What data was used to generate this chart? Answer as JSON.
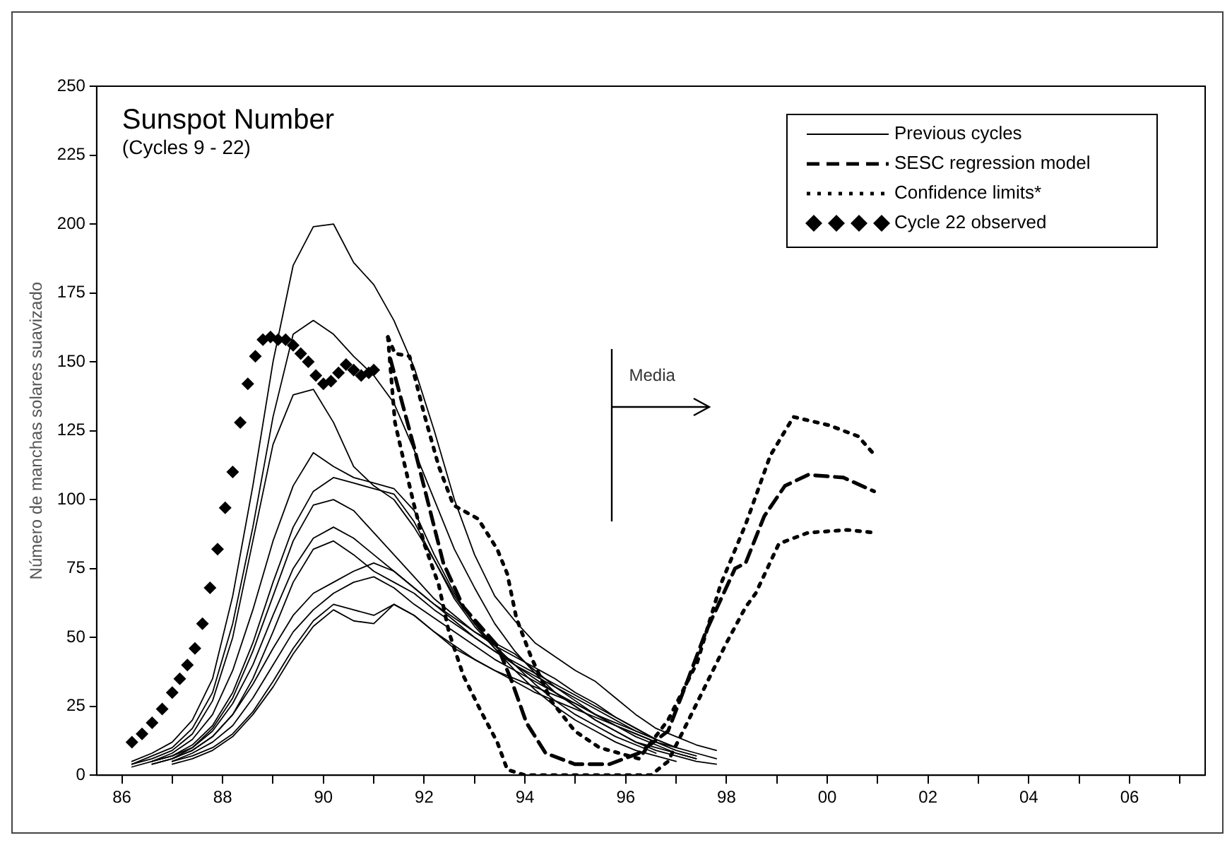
{
  "chart_data": {
    "type": "line",
    "title": "Sunspot Number",
    "subtitle": "(Cycles 9 - 22)",
    "ylabel": "Número de manchas solares suavizado",
    "x": [
      1986.2,
      1986.6,
      1987,
      1987.4,
      1987.8,
      1988.2,
      1988.6,
      1989,
      1989.4,
      1989.8,
      1990.2,
      1990.6,
      1991,
      1991.4,
      1991.8,
      1992.2,
      1992.6,
      1993,
      1993.4,
      1993.8,
      1994.2,
      1994.6,
      1995,
      1995.4,
      1995.8,
      1996.2,
      1996.6,
      1997,
      1997.4,
      1997.8
    ],
    "xlim": [
      1985.5,
      2007.5
    ],
    "xticks": [
      {
        "value": 1986,
        "label": "86"
      },
      {
        "value": 1987,
        "label": null
      },
      {
        "value": 1988,
        "label": "88"
      },
      {
        "value": 1989,
        "label": null
      },
      {
        "value": 1990,
        "label": "90"
      },
      {
        "value": 1991,
        "label": null
      },
      {
        "value": 1992,
        "label": "92"
      },
      {
        "value": 1993,
        "label": null
      },
      {
        "value": 1994,
        "label": "94"
      },
      {
        "value": 1995,
        "label": null
      },
      {
        "value": 1996,
        "label": "96"
      },
      {
        "value": 1997,
        "label": null
      },
      {
        "value": 1998,
        "label": "98"
      },
      {
        "value": 1999,
        "label": null
      },
      {
        "value": 2000,
        "label": "00"
      },
      {
        "value": 2001,
        "label": null
      },
      {
        "value": 2002,
        "label": "02"
      },
      {
        "value": 2003,
        "label": null
      },
      {
        "value": 2004,
        "label": "04"
      },
      {
        "value": 2005,
        "label": null
      },
      {
        "value": 2006,
        "label": "06"
      },
      {
        "value": 2007,
        "label": null
      }
    ],
    "ylim": [
      0,
      250
    ],
    "yticks": [
      0,
      25,
      50,
      75,
      100,
      125,
      150,
      175,
      200,
      225,
      250
    ],
    "marker": "none",
    "legend": "top right",
    "annotations": [
      "Media"
    ],
    "series": [
      {
        "name": "Previous cycles",
        "color": "#000000",
        "line_style": "solid",
        "values": [
          5,
          8,
          12,
          20,
          35,
          65,
          105,
          150,
          185,
          199,
          200,
          186,
          178,
          165,
          148,
          125,
          100,
          80,
          65,
          56,
          48,
          43,
          38,
          34,
          28,
          22,
          17,
          14,
          11,
          9
        ]
      },
      {
        "color": "#000000",
        "line_style": "solid",
        "values": [
          4,
          7,
          10,
          17,
          30,
          55,
          90,
          130,
          160,
          165,
          160,
          152,
          145,
          135,
          118,
          100,
          82,
          68,
          55,
          45,
          37,
          30,
          25,
          20,
          16,
          12,
          10,
          8,
          6,
          null
        ]
      },
      {
        "color": "#000000",
        "line_style": "solid",
        "values": [
          4,
          6,
          9,
          15,
          27,
          50,
          85,
          120,
          138,
          140,
          128,
          112,
          105,
          100,
          90,
          78,
          65,
          55,
          46,
          38,
          31,
          25,
          20,
          16,
          12,
          9,
          7,
          5,
          null,
          null
        ]
      },
      {
        "color": "#000000",
        "line_style": "solid",
        "values": [
          3,
          5,
          8,
          13,
          22,
          38,
          60,
          85,
          105,
          117,
          112,
          108,
          106,
          104,
          96,
          80,
          66,
          55,
          47,
          40,
          33,
          27,
          22,
          18,
          14,
          11,
          8,
          null,
          null,
          null
        ]
      },
      {
        "color": "#000000",
        "line_style": "solid",
        "values": [
          null,
          5,
          7,
          11,
          18,
          30,
          48,
          70,
          90,
          103,
          108,
          106,
          104,
          102,
          92,
          78,
          64,
          54,
          46,
          40,
          35,
          30,
          25,
          20,
          16,
          12,
          9,
          7,
          5,
          4
        ]
      },
      {
        "color": "#000000",
        "line_style": "solid",
        "values": [
          null,
          4,
          6,
          10,
          17,
          28,
          45,
          65,
          85,
          98,
          100,
          96,
          88,
          80,
          72,
          64,
          58,
          52,
          48,
          44,
          38,
          32,
          27,
          22,
          18,
          14,
          11,
          8,
          6,
          null
        ]
      },
      {
        "color": "#000000",
        "line_style": "solid",
        "values": [
          null,
          5,
          7,
          10,
          16,
          26,
          40,
          58,
          75,
          86,
          90,
          86,
          80,
          74,
          68,
          62,
          57,
          52,
          47,
          43,
          39,
          35,
          30,
          26,
          21,
          17,
          13,
          10,
          null,
          null
        ]
      },
      {
        "color": "#000000",
        "line_style": "solid",
        "values": [
          null,
          4,
          6,
          9,
          14,
          22,
          35,
          52,
          70,
          82,
          85,
          80,
          74,
          70,
          66,
          60,
          55,
          50,
          45,
          41,
          37,
          33,
          29,
          25,
          21,
          17,
          13,
          null,
          null,
          null
        ]
      },
      {
        "color": "#000000",
        "line_style": "solid",
        "values": [
          null,
          null,
          6,
          9,
          14,
          22,
          33,
          46,
          58,
          66,
          70,
          74,
          77,
          74,
          68,
          62,
          56,
          50,
          45,
          40,
          36,
          32,
          28,
          24,
          20,
          16,
          13,
          10,
          8,
          6
        ]
      },
      {
        "color": "#000000",
        "line_style": "solid",
        "values": [
          null,
          null,
          5,
          8,
          12,
          18,
          28,
          40,
          52,
          60,
          66,
          70,
          72,
          68,
          62,
          57,
          52,
          47,
          42,
          38,
          34,
          30,
          26,
          22,
          18,
          15,
          12,
          9,
          7,
          null
        ]
      },
      {
        "color": "#000000",
        "line_style": "solid",
        "values": [
          null,
          null,
          5,
          7,
          10,
          15,
          23,
          34,
          46,
          56,
          62,
          60,
          58,
          62,
          58,
          52,
          46,
          42,
          38,
          34,
          30,
          27,
          24,
          21,
          18,
          15,
          12,
          10,
          null,
          null
        ]
      },
      {
        "color": "#000000",
        "line_style": "solid",
        "values": [
          null,
          null,
          4,
          6,
          9,
          14,
          22,
          32,
          44,
          54,
          60,
          56,
          55,
          62,
          58,
          52,
          47,
          42,
          38,
          35,
          32,
          29,
          26,
          22,
          19,
          16,
          13,
          null,
          null,
          null
        ]
      },
      {
        "name": "SESC regression model",
        "color": "#000000",
        "line_style": "dashed",
        "x": [
          1991.33,
          1991.8,
          1992.09,
          1992.38,
          1992.78,
          1993.45,
          1993.74,
          1994.03,
          1994.41,
          1994.99,
          1995.68,
          1996.26,
          1996.84,
          1997.22,
          1997.59,
          1998.17,
          1998.38,
          1998.75,
          1999.16,
          1999.62,
          2000.32,
          2000.93
        ],
        "values": [
          151,
          119,
          98,
          77,
          61,
          47,
          34,
          19,
          8,
          4,
          4,
          8,
          16,
          34,
          52,
          75,
          77,
          94,
          105,
          109,
          108,
          103
        ]
      },
      {
        "name": "Confidence limits*",
        "color": "#000000",
        "line_style": "dotted",
        "x": [
          1991.28,
          1991.42,
          1991.71,
          1992.0,
          1992.29,
          1992.58,
          1993.07,
          1993.45,
          1993.65,
          1993.83,
          1994.12,
          1994.52,
          1994.99,
          1995.48,
          1996.26,
          1996.84,
          1997.42,
          1997.88,
          1998.38,
          1998.87,
          1999.33,
          2000.03,
          2000.61,
          2000.9
        ],
        "values": [
          159,
          153,
          152,
          131,
          112,
          98,
          93,
          82,
          73,
          57,
          43,
          27,
          16,
          10,
          6,
          20,
          41,
          69,
          91,
          116,
          130,
          127,
          123,
          117
        ]
      },
      {
        "color": "#000000",
        "line_style": "dotted",
        "x": [
          1991.28,
          1991.42,
          1991.62,
          1991.8,
          1992.0,
          1992.29,
          1992.49,
          1992.78,
          1993.16,
          1993.45,
          1993.65,
          1994.0,
          1996.5,
          1996.84,
          1997.22,
          1998.0,
          1998.38,
          1998.58,
          1999.04,
          1999.62,
          2000.41,
          2000.93
        ],
        "values": [
          159,
          128,
          112,
          98,
          84,
          69,
          52,
          36,
          22,
          12,
          2,
          0,
          0,
          5,
          19,
          48,
          61,
          66,
          84,
          88,
          89,
          88
        ]
      },
      {
        "name": "Cycle 22 observed",
        "type": "scatter",
        "marker": "diamond",
        "color": "#000000",
        "x": [
          1986.2,
          1986.4,
          1986.6,
          1986.8,
          1987.0,
          1987.15,
          1987.3,
          1987.45,
          1987.6,
          1987.75,
          1987.9,
          1988.05,
          1988.2,
          1988.35,
          1988.5,
          1988.65,
          1988.8,
          1988.95,
          1989.1,
          1989.25,
          1989.4,
          1989.55,
          1989.7,
          1989.85,
          1990.0,
          1990.15,
          1990.3,
          1990.45,
          1990.6,
          1990.75,
          1990.9,
          1991.0
        ],
        "values": [
          12,
          15,
          19,
          24,
          30,
          35,
          40,
          46,
          55,
          68,
          82,
          97,
          110,
          128,
          142,
          152,
          158,
          159,
          158,
          158,
          156,
          153,
          150,
          145,
          142,
          143,
          146,
          149,
          147,
          145,
          146,
          147
        ]
      }
    ]
  }
}
